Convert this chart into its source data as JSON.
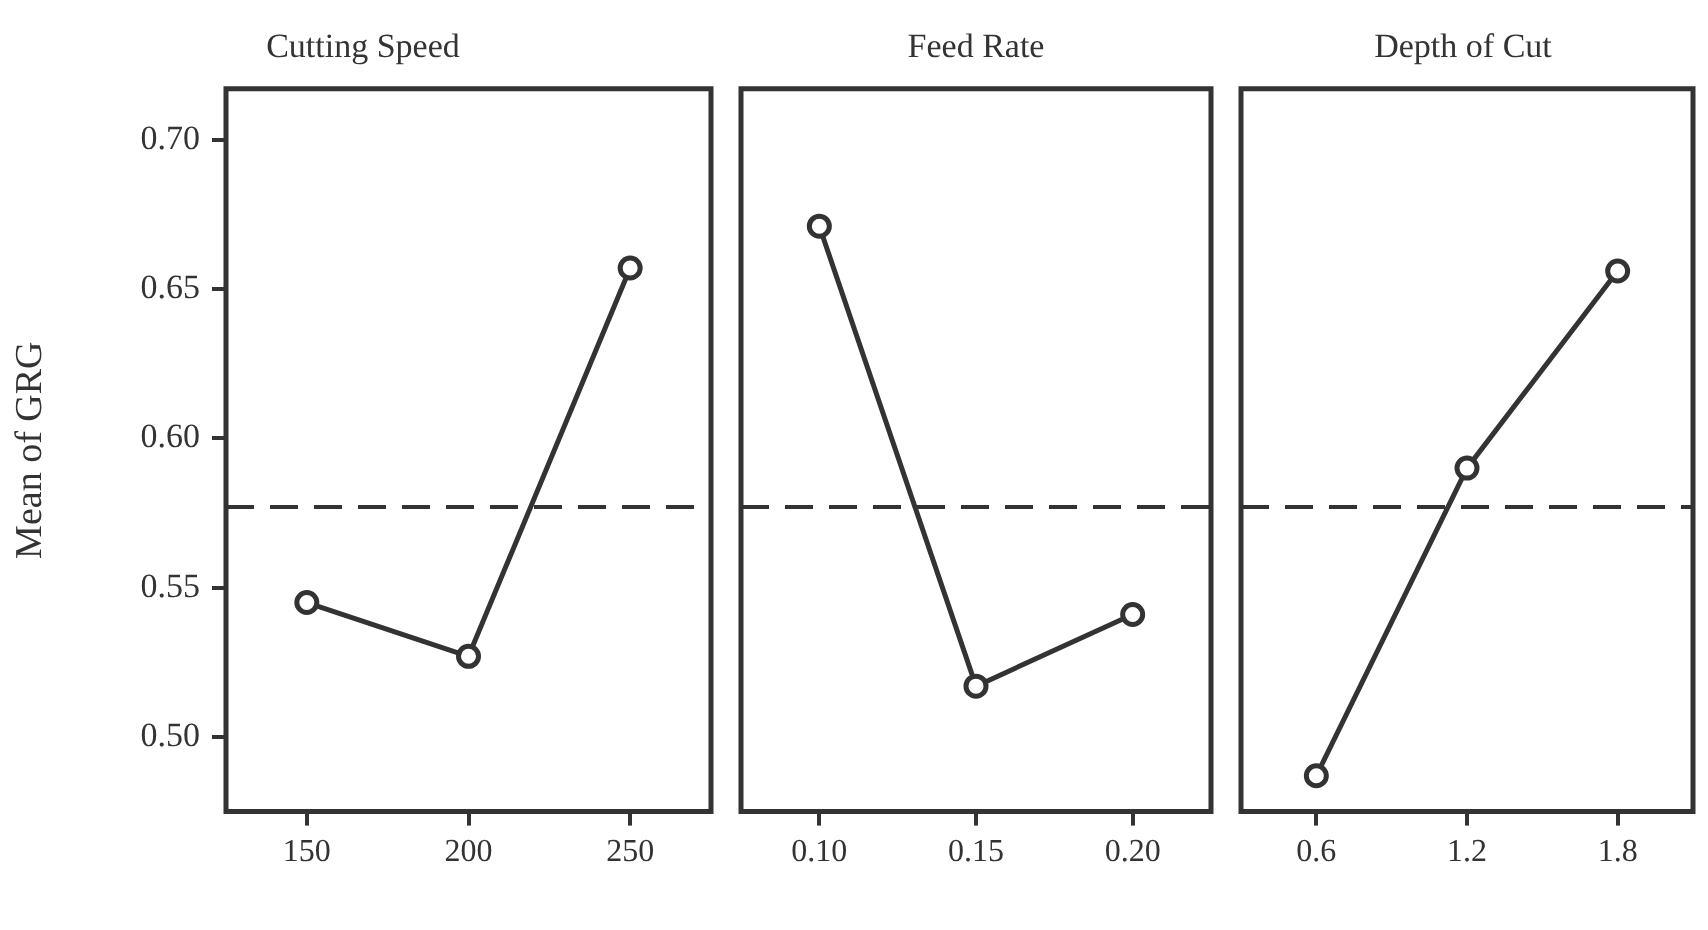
{
  "chart_data": [
    {
      "type": "line",
      "title": "Cutting Speed",
      "ylabel": "Mean of GRG",
      "categories": [
        "150",
        "200",
        "250"
      ],
      "values": [
        0.545,
        0.527,
        0.657
      ],
      "color": "#333333",
      "ylim": [
        0.475,
        0.717
      ],
      "yticks": [
        {
          "value": 0.5,
          "label": "0.50"
        },
        0.55,
        {
          "value": 0.6,
          "label": "0.60"
        },
        0.65,
        {
          "value": 0.7,
          "label": "0.70"
        }
      ],
      "marker": "circle",
      "ref_lines": [
        {
          "axis": "y",
          "value": 0.577,
          "line_style": "dashed"
        }
      ]
    },
    {
      "type": "line",
      "title": "Feed Rate",
      "categories": [
        "0.10",
        "0.15",
        "0.20"
      ],
      "values": [
        0.671,
        0.517,
        0.541
      ],
      "color": "#333333",
      "ylim": [
        0.475,
        0.717
      ],
      "tick_labels": "x",
      "marker": "circle",
      "ref_lines": [
        {
          "axis": "y",
          "value": 0.577,
          "line_style": "dashed"
        }
      ]
    },
    {
      "type": "line",
      "title": "Depth of Cut",
      "categories": [
        "0.6",
        "1.2",
        "1.8"
      ],
      "values": [
        0.487,
        0.59,
        0.656
      ],
      "color": "#333333",
      "ylim": [
        0.475,
        0.717
      ],
      "tick_labels": "x",
      "marker": "circle",
      "ref_lines": [
        {
          "axis": "y",
          "value": 0.577,
          "line_style": "dashed"
        }
      ]
    }
  ]
}
